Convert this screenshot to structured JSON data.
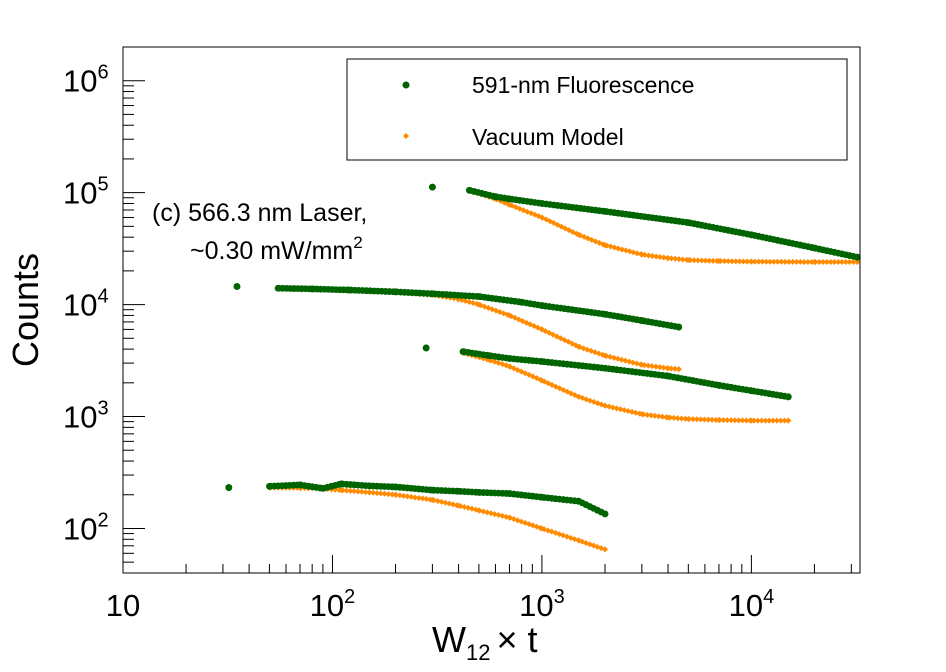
{
  "chart_data": {
    "type": "scatter",
    "title": "",
    "xlabel": "W",
    "xlabel_sub": "12",
    "xlabel_suffix": "× t",
    "ylabel": "Counts",
    "xscale": "log",
    "yscale": "log",
    "xlim": [
      10,
      33000
    ],
    "ylim": [
      40,
      2000000
    ],
    "x_tick_labels": [
      {
        "value": 10,
        "base": "10",
        "exp": ""
      },
      {
        "value": 100,
        "base": "10",
        "exp": "2"
      },
      {
        "value": 1000,
        "base": "10",
        "exp": "3"
      },
      {
        "value": 10000,
        "base": "10",
        "exp": "4"
      }
    ],
    "y_tick_labels": [
      {
        "value": 100,
        "base": "10",
        "exp": "2"
      },
      {
        "value": 1000,
        "base": "10",
        "exp": "3"
      },
      {
        "value": 10000,
        "base": "10",
        "exp": "4"
      },
      {
        "value": 100000,
        "base": "10",
        "exp": "5"
      },
      {
        "value": 1000000,
        "base": "10",
        "exp": "6"
      }
    ],
    "grid": false,
    "legend": {
      "placement": "top-right",
      "entries": [
        {
          "label": "591-nm Fluorescence",
          "color": "#006400",
          "marker": "circle"
        },
        {
          "label": "Vacuum Model",
          "color": "#ff8c00",
          "marker": "diamond"
        }
      ]
    },
    "annotation": {
      "line1": "(c) 566.3 nm Laser,",
      "line2": "~0.30 mW/mm",
      "line2_sup": "2"
    },
    "series": [
      {
        "group": 1,
        "role": "fluorescence",
        "x": [
          300,
          450,
          600,
          700,
          1000,
          2000,
          5000,
          10000,
          20000,
          32000
        ],
        "y": [
          112000,
          105000,
          92000,
          88000,
          80000,
          68000,
          54000,
          42000,
          32000,
          26500
        ]
      },
      {
        "group": 1,
        "role": "model",
        "x": [
          300,
          450,
          600,
          700,
          1000,
          1500,
          2000,
          3000,
          4000,
          5000,
          7000,
          10000,
          20000,
          32000
        ],
        "y": [
          112000,
          104000,
          88000,
          78000,
          60000,
          42000,
          34000,
          28000,
          26000,
          25000,
          24500,
          24200,
          24000,
          24000
        ]
      },
      {
        "group": 2,
        "role": "fluorescence",
        "x": [
          35,
          55,
          80,
          120,
          200,
          300,
          500,
          800,
          1000,
          2000,
          3000,
          4500
        ],
        "y": [
          14500,
          14000,
          13800,
          13500,
          13000,
          12500,
          11800,
          10500,
          9800,
          8200,
          7200,
          6300
        ]
      },
      {
        "group": 2,
        "role": "model",
        "x": [
          35,
          55,
          80,
          120,
          200,
          300,
          400,
          500,
          700,
          1000,
          1500,
          2000,
          3000,
          4000,
          4500
        ],
        "y": [
          14500,
          14000,
          13800,
          13400,
          12900,
          12200,
          11200,
          10000,
          8000,
          6000,
          4200,
          3500,
          2900,
          2700,
          2650
        ]
      },
      {
        "group": 3,
        "role": "fluorescence",
        "x": [
          280,
          420,
          560,
          700,
          1000,
          2000,
          4000,
          7000,
          10000,
          15000
        ],
        "y": [
          4100,
          3800,
          3500,
          3300,
          3100,
          2700,
          2300,
          1900,
          1700,
          1500
        ]
      },
      {
        "group": 3,
        "role": "model",
        "x": [
          280,
          420,
          560,
          700,
          1000,
          1500,
          2000,
          3000,
          4000,
          5000,
          7000,
          10000,
          15000
        ],
        "y": [
          4100,
          3700,
          3200,
          2800,
          2100,
          1500,
          1250,
          1050,
          980,
          950,
          930,
          920,
          920
        ]
      },
      {
        "group": 4,
        "role": "fluorescence",
        "x": [
          32,
          50,
          70,
          90,
          110,
          150,
          200,
          300,
          400,
          500,
          700,
          1000,
          1500,
          2000
        ],
        "y": [
          232,
          238,
          245,
          228,
          250,
          240,
          235,
          220,
          215,
          210,
          205,
          190,
          175,
          135
        ]
      },
      {
        "group": 4,
        "role": "model",
        "x": [
          32,
          50,
          70,
          90,
          110,
          150,
          200,
          300,
          400,
          500,
          700,
          1000,
          1500,
          2000
        ],
        "y": [
          232,
          232,
          230,
          227,
          220,
          210,
          200,
          180,
          160,
          145,
          125,
          100,
          78,
          65
        ]
      }
    ]
  }
}
